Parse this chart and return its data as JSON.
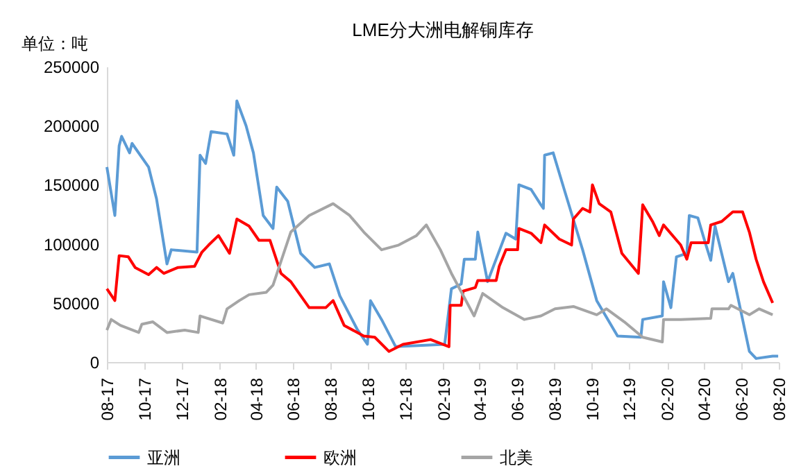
{
  "chart_data": {
    "type": "line",
    "title": "LME分大洲电解铜库存",
    "ylabel": "单位：吨",
    "xlim": [
      "2017-08-01",
      "2020-08-01"
    ],
    "ylim": [
      0,
      250000
    ],
    "yticks": [
      0,
      50000,
      100000,
      150000,
      200000,
      250000
    ],
    "xticks": [
      {
        "value": "2017-08-01",
        "label": "08-17"
      },
      {
        "value": "2017-10-01",
        "label": "10-17"
      },
      {
        "value": "2017-12-01",
        "label": "12-17"
      },
      {
        "value": "2018-02-01",
        "label": "02-18"
      },
      {
        "value": "2018-04-01",
        "label": "04-18"
      },
      {
        "value": "2018-06-01",
        "label": "06-18"
      },
      {
        "value": "2018-08-01",
        "label": "08-18"
      },
      {
        "value": "2018-10-01",
        "label": "10-18"
      },
      {
        "value": "2018-12-01",
        "label": "12-18"
      },
      {
        "value": "2019-02-01",
        "label": "02-19"
      },
      {
        "value": "2019-04-01",
        "label": "04-19"
      },
      {
        "value": "2019-06-01",
        "label": "06-19"
      },
      {
        "value": "2019-08-01",
        "label": "08-19"
      },
      {
        "value": "2019-10-01",
        "label": "10-19"
      },
      {
        "value": "2019-12-01",
        "label": "12-19"
      },
      {
        "value": "2020-02-01",
        "label": "02-20"
      },
      {
        "value": "2020-04-01",
        "label": "04-20"
      },
      {
        "value": "2020-06-01",
        "label": "06-20"
      },
      {
        "value": "2020-08-01",
        "label": "08-20"
      }
    ],
    "legend": "bottom",
    "grid": false,
    "series": [
      {
        "name": "亚洲",
        "color": "#5b9bd5",
        "x": [
          "2017-08-01",
          "2017-08-14",
          "2017-08-21",
          "2017-08-25",
          "2017-09-07",
          "2017-09-11",
          "2017-10-08",
          "2017-10-21",
          "2017-11-07",
          "2017-11-14",
          "2017-12-26",
          "2017-12-31",
          "2018-01-09",
          "2018-01-18",
          "2018-02-13",
          "2018-02-24",
          "2018-03-01",
          "2018-03-16",
          "2018-03-28",
          "2018-04-13",
          "2018-04-29",
          "2018-05-05",
          "2018-05-23",
          "2018-06-13",
          "2018-07-06",
          "2018-07-30",
          "2018-08-16",
          "2018-09-13",
          "2018-09-30",
          "2018-10-05",
          "2018-10-23",
          "2018-11-15",
          "2019-02-03",
          "2019-02-14",
          "2019-03-02",
          "2019-03-07",
          "2019-03-25",
          "2019-03-29",
          "2019-04-14",
          "2019-05-14",
          "2019-05-30",
          "2019-06-04",
          "2019-06-24",
          "2019-07-10",
          "2019-07-14",
          "2019-07-16",
          "2019-07-30",
          "2019-08-17",
          "2019-09-16",
          "2019-10-09",
          "2019-11-12",
          "2019-12-20",
          "2019-12-23",
          "2020-01-24",
          "2020-01-26",
          "2020-02-07",
          "2020-02-16",
          "2020-03-04",
          "2020-03-08",
          "2020-03-22",
          "2020-04-03",
          "2020-04-12",
          "2020-04-19",
          "2020-05-11",
          "2020-05-18",
          "2020-06-14",
          "2020-06-25",
          "2020-07-22",
          "2020-07-31"
        ],
        "values": [
          165000,
          124000,
          183000,
          191000,
          177000,
          185000,
          165000,
          138000,
          83000,
          95000,
          93000,
          175000,
          168000,
          195000,
          193000,
          175000,
          221000,
          200000,
          177000,
          124000,
          113000,
          148000,
          136000,
          92000,
          80000,
          83000,
          56000,
          28000,
          15000,
          52000,
          36000,
          13000,
          15000,
          62000,
          66000,
          87000,
          87000,
          110000,
          68000,
          109000,
          104000,
          150000,
          146000,
          133000,
          130000,
          175000,
          177000,
          146000,
          95000,
          52000,
          22000,
          21000,
          36000,
          39000,
          68000,
          46000,
          89000,
          92000,
          124000,
          122000,
          101000,
          86000,
          115000,
          68000,
          75000,
          9000,
          3000,
          5000,
          5000
        ]
      },
      {
        "name": "欧洲",
        "color": "#ff0000",
        "x": [
          "2017-08-01",
          "2017-08-14",
          "2017-08-21",
          "2017-09-05",
          "2017-09-16",
          "2017-10-08",
          "2017-10-21",
          "2017-11-02",
          "2017-11-25",
          "2017-12-22",
          "2018-01-03",
          "2018-01-14",
          "2018-01-30",
          "2018-02-17",
          "2018-03-01",
          "2018-03-21",
          "2018-04-06",
          "2018-04-24",
          "2018-05-12",
          "2018-05-28",
          "2018-06-27",
          "2018-07-24",
          "2018-08-05",
          "2018-08-23",
          "2018-09-24",
          "2018-10-12",
          "2018-11-04",
          "2018-11-27",
          "2019-01-11",
          "2019-02-10",
          "2019-02-12",
          "2019-03-02",
          "2019-03-05",
          "2019-03-25",
          "2019-03-29",
          "2019-04-28",
          "2019-05-03",
          "2019-05-14",
          "2019-06-02",
          "2019-06-04",
          "2019-06-24",
          "2019-07-10",
          "2019-07-16",
          "2019-08-09",
          "2019-08-29",
          "2019-09-01",
          "2019-09-16",
          "2019-09-28",
          "2019-10-02",
          "2019-10-13",
          "2019-11-01",
          "2019-11-19",
          "2019-12-16",
          "2019-12-23",
          "2020-01-08",
          "2020-01-19",
          "2020-01-26",
          "2020-02-23",
          "2020-03-04",
          "2020-03-11",
          "2020-04-08",
          "2020-04-12",
          "2020-04-30",
          "2020-05-18",
          "2020-06-03",
          "2020-06-14",
          "2020-06-25",
          "2020-07-07",
          "2020-07-22"
        ],
        "values": [
          62000,
          52000,
          90000,
          89000,
          80000,
          74000,
          80000,
          75000,
          80000,
          81000,
          93000,
          99000,
          107000,
          92000,
          121000,
          115000,
          103000,
          103000,
          75000,
          68000,
          46000,
          46000,
          52000,
          31000,
          22000,
          21000,
          9000,
          15000,
          19000,
          13000,
          48000,
          48000,
          60000,
          63000,
          69000,
          69000,
          81000,
          95000,
          95000,
          113000,
          109000,
          101000,
          116000,
          104000,
          99000,
          121000,
          130000,
          127000,
          150000,
          134000,
          127000,
          92000,
          75000,
          133000,
          119000,
          107000,
          116000,
          99000,
          87000,
          101000,
          101000,
          116000,
          119000,
          127000,
          127000,
          110000,
          87000,
          68000,
          50000
        ]
      },
      {
        "name": "北美",
        "color": "#a5a5a5",
        "x": [
          "2017-08-01",
          "2017-08-08",
          "2017-08-23",
          "2017-09-22",
          "2017-09-27",
          "2017-10-15",
          "2017-11-07",
          "2017-12-06",
          "2017-12-28",
          "2017-12-31",
          "2018-02-06",
          "2018-02-13",
          "2018-03-05",
          "2018-03-21",
          "2018-04-18",
          "2018-04-29",
          "2018-05-28",
          "2018-06-27",
          "2018-08-05",
          "2018-09-01",
          "2018-09-24",
          "2018-10-23",
          "2018-11-20",
          "2018-12-19",
          "2019-01-04",
          "2019-01-27",
          "2019-02-14",
          "2019-03-23",
          "2019-04-06",
          "2019-05-09",
          "2019-06-13",
          "2019-07-10",
          "2019-08-02",
          "2019-09-01",
          "2019-10-09",
          "2019-10-25",
          "2019-11-23",
          "2019-12-23",
          "2020-01-24",
          "2020-01-26",
          "2020-02-23",
          "2020-04-12",
          "2020-04-14",
          "2020-05-11",
          "2020-05-15",
          "2020-06-14",
          "2020-06-30",
          "2020-07-22"
        ],
        "values": [
          27000,
          36000,
          31000,
          25000,
          32000,
          34000,
          25000,
          27000,
          25000,
          39000,
          33000,
          45000,
          52000,
          57000,
          59000,
          65000,
          110000,
          124000,
          134000,
          124000,
          110000,
          95000,
          99000,
          107000,
          116000,
          95000,
          75000,
          39000,
          58000,
          46000,
          36000,
          39000,
          45000,
          47000,
          40000,
          45000,
          34000,
          21000,
          17000,
          36000,
          36000,
          37000,
          45000,
          45000,
          48000,
          40000,
          45000,
          40000
        ]
      }
    ]
  }
}
